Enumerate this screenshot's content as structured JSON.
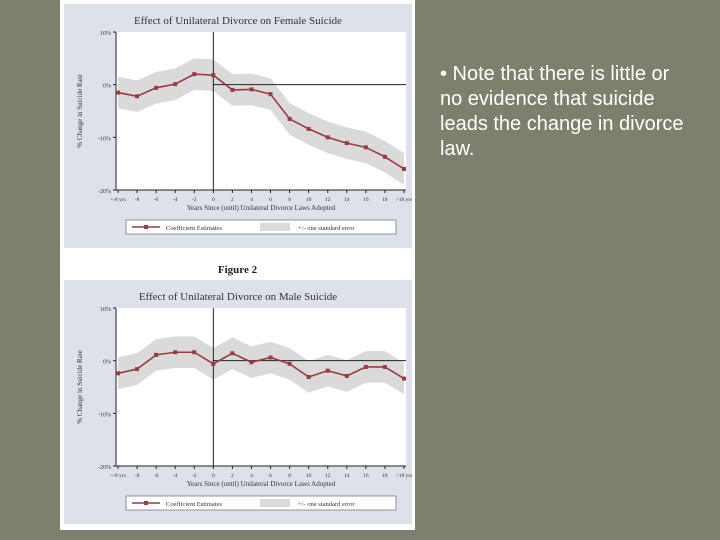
{
  "slide": {
    "bullet": "• Note that there is little or no evidence that suicide leads the change in divorce law.",
    "figure_caption": "Figure 2",
    "background_color": "#7f7f6e"
  },
  "chart_data": [
    {
      "type": "line",
      "title": "Effect of Unilateral Divorce on Female Suicide",
      "xlabel": "Years Since (until) Unilateral Divorce Laws Adopted",
      "ylabel": "% Change in Suicide Rate",
      "x_tick_labels": [
        "<-8 yrs",
        "-8",
        "-6",
        "-4",
        "-2",
        "0",
        "2",
        "4",
        "6",
        "8",
        "10",
        "12",
        "14",
        "16",
        "18",
        ">18 yrs"
      ],
      "y_tick_labels": [
        "10%",
        "0%",
        "-10%",
        "-20%"
      ],
      "ylim": [
        -20,
        10
      ],
      "series": [
        {
          "name": "Coefficient Estimates",
          "values": [
            -1.5,
            -2.2,
            -0.6,
            0.1,
            2.0,
            1.8,
            -1.0,
            -0.9,
            -1.8,
            -6.5,
            -8.4,
            -10.0,
            -11.1,
            -11.9,
            -13.7,
            -16.0
          ],
          "se": 3.0,
          "color": "#9b3a40"
        }
      ],
      "legend": [
        "Coefficient Estimates",
        "+/- one standard error"
      ],
      "legend_position": "bottom"
    },
    {
      "type": "line",
      "title": "Effect of Unilateral Divorce on Male Suicide",
      "xlabel": "Years Since (until) Unilateral Divorce Laws Adopted",
      "ylabel": "% Change in Suicide Rate",
      "x_tick_labels": [
        "<-8 yrs",
        "-8",
        "-6",
        "-4",
        "-2",
        "0",
        "2",
        "4",
        "6",
        "8",
        "10",
        "12",
        "14",
        "16",
        "18",
        ">18 yrs"
      ],
      "y_tick_labels": [
        "10%",
        "0%",
        "-10%",
        "-20%"
      ],
      "ylim": [
        -20,
        10
      ],
      "series": [
        {
          "name": "Coefficient Estimates",
          "values": [
            -2.4,
            -1.6,
            1.1,
            1.6,
            1.6,
            -0.6,
            1.4,
            -0.3,
            0.6,
            -0.6,
            -3.1,
            -1.9,
            -2.9,
            -1.2,
            -1.2,
            -3.4
          ],
          "se": 3.0,
          "color": "#9b3a40"
        }
      ],
      "legend": [
        "Coefficient Estimates",
        "+/- one standard error"
      ],
      "legend_position": "bottom"
    }
  ]
}
